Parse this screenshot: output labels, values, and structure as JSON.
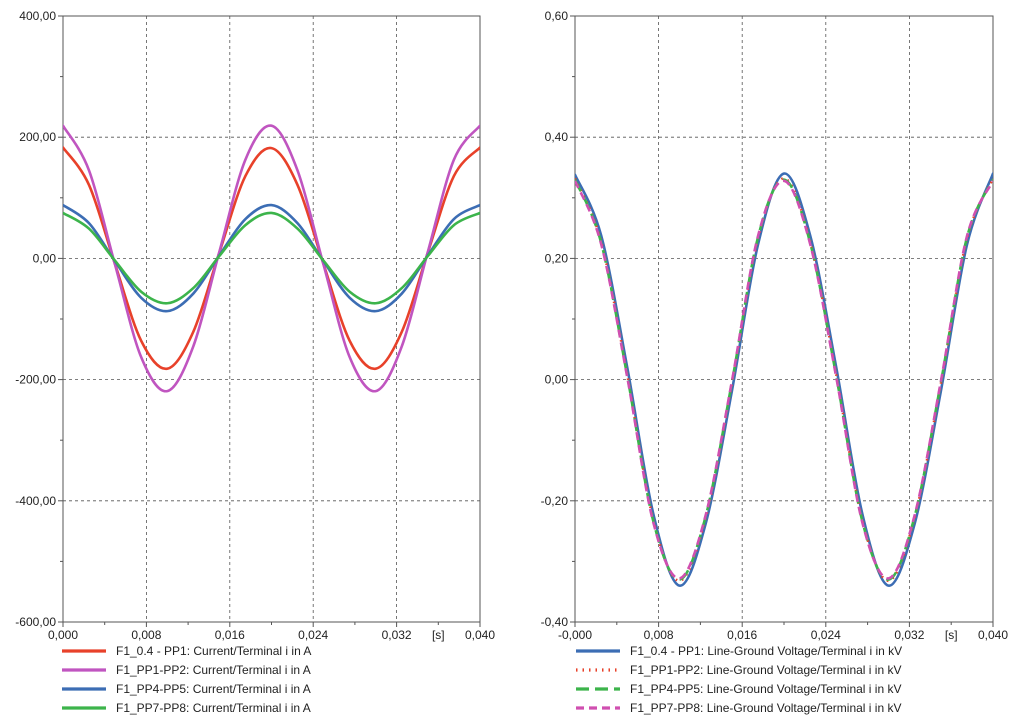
{
  "chart_data": [
    {
      "type": "line",
      "unit_label": "[s]",
      "xlim": [
        0,
        0.04
      ],
      "ylim": [
        -600,
        400
      ],
      "x_ticks": [
        0,
        0.008,
        0.016,
        0.024,
        0.032,
        0.04
      ],
      "x_tick_labels": [
        "0,000",
        "0,008",
        "0,016",
        "0,024",
        "0,032",
        "0,040"
      ],
      "y_ticks": [
        400,
        200,
        0,
        -200,
        -400,
        -600
      ],
      "y_tick_labels": [
        "400,00",
        "200,00",
        "0,00",
        "-200,00",
        "-400,00",
        "-600,00"
      ],
      "grid": true,
      "legend_position": "bottom",
      "series": [
        {
          "name": "F1_0.4 - PP1: Current/Terminal i in A",
          "color": "#e8412a",
          "dash": "solid",
          "x": [
            0,
            0.0025,
            0.005,
            0.0075,
            0.01,
            0.0125,
            0.015,
            0.0175,
            0.02,
            0.0225,
            0.025,
            0.0275,
            0.03,
            0.0325,
            0.035,
            0.0375,
            0.04
          ],
          "y": [
            183,
            121,
            -10,
            -136,
            -182,
            -121,
            10,
            136,
            182,
            121,
            -10,
            -136,
            -182,
            -121,
            10,
            136,
            183
          ]
        },
        {
          "name": "F1_PP1-PP2: Current/Terminal i in A",
          "color": "#c055c0",
          "dash": "solid",
          "x": [
            0,
            0.0025,
            0.005,
            0.0075,
            0.01,
            0.0125,
            0.015,
            0.0175,
            0.02,
            0.0225,
            0.025,
            0.0275,
            0.03,
            0.0325,
            0.035,
            0.0375,
            0.04
          ],
          "y": [
            219,
            145,
            -11,
            -163,
            -219,
            -145,
            11,
            163,
            219,
            145,
            -11,
            -163,
            -219,
            -145,
            11,
            163,
            219
          ]
        },
        {
          "name": "F1_PP4-PP5: Current/Terminal i in A",
          "color": "#3c6db4",
          "dash": "solid",
          "x": [
            0,
            0.0025,
            0.005,
            0.0075,
            0.01,
            0.0125,
            0.015,
            0.0175,
            0.02,
            0.0225,
            0.025,
            0.0275,
            0.03,
            0.0325,
            0.035,
            0.0375,
            0.04
          ],
          "y": [
            88,
            58,
            -5,
            -65,
            -87,
            -58,
            5,
            65,
            88,
            58,
            -5,
            -65,
            -87,
            -58,
            5,
            65,
            88
          ]
        },
        {
          "name": "F1_PP7-PP8: Current/Terminal i in A",
          "color": "#3cb44b",
          "dash": "solid",
          "x": [
            0,
            0.0025,
            0.005,
            0.0075,
            0.01,
            0.0125,
            0.015,
            0.0175,
            0.02,
            0.0225,
            0.025,
            0.0275,
            0.03,
            0.0325,
            0.035,
            0.0375,
            0.04
          ],
          "y": [
            75,
            49,
            -4,
            -55,
            -74,
            -49,
            4,
            55,
            75,
            49,
            -4,
            -55,
            -74,
            -49,
            4,
            55,
            75
          ]
        }
      ]
    },
    {
      "type": "line",
      "unit_label": "[s]",
      "xlim": [
        0,
        0.04
      ],
      "ylim": [
        -0.4,
        0.6
      ],
      "x_ticks": [
        0,
        0.008,
        0.016,
        0.024,
        0.032,
        0.04
      ],
      "x_tick_labels": [
        "-0,000",
        "0,008",
        "0,016",
        "0,024",
        "0,032",
        "0,040"
      ],
      "y_ticks": [
        0.6,
        0.4,
        0.2,
        0,
        -0.2,
        -0.4
      ],
      "y_tick_labels": [
        "0,60",
        "0,40",
        "0,20",
        "0,00",
        "-0,20",
        "-0,40"
      ],
      "grid": true,
      "legend_position": "bottom",
      "series": [
        {
          "name": "F1_0.4 - PP1: Line-Ground Voltage/Terminal i in kV",
          "color": "#3c6db4",
          "dash": "solid",
          "x": [
            0,
            0.0025,
            0.005,
            0.0075,
            0.01,
            0.0125,
            0.015,
            0.0175,
            0.02,
            0.0225,
            0.025,
            0.0275,
            0.03,
            0.0325,
            0.035,
            0.0375,
            0.04
          ],
          "y": [
            0.338,
            0.238,
            0.02,
            -0.222,
            -0.34,
            -0.238,
            -0.02,
            0.222,
            0.34,
            0.238,
            0.02,
            -0.222,
            -0.34,
            -0.238,
            -0.02,
            0.222,
            0.34
          ]
        },
        {
          "name": "F1_PP1-PP2: Line-Ground Voltage/Terminal i in kV",
          "color": "#e8412a",
          "dash": "dotted",
          "x": [
            0,
            0.0025,
            0.005,
            0.0075,
            0.01,
            0.0125,
            0.015,
            0.0175,
            0.02,
            0.0225,
            0.025,
            0.0275,
            0.03,
            0.0325,
            0.035,
            0.0375,
            0.04
          ],
          "y": [
            0.332,
            0.228,
            0.008,
            -0.232,
            -0.332,
            -0.228,
            -0.008,
            0.232,
            0.332,
            0.228,
            0.008,
            -0.232,
            -0.332,
            -0.228,
            -0.008,
            0.232,
            0.332
          ]
        },
        {
          "name": "F1_PP4-PP5: Line-Ground Voltage/Terminal i in kV",
          "color": "#3cb44b",
          "dash": "longdash",
          "x": [
            0,
            0.0025,
            0.005,
            0.0075,
            0.01,
            0.0125,
            0.015,
            0.0175,
            0.02,
            0.0225,
            0.025,
            0.0275,
            0.03,
            0.0325,
            0.035,
            0.0375,
            0.04
          ],
          "y": [
            0.33,
            0.226,
            0.006,
            -0.234,
            -0.33,
            -0.226,
            -0.006,
            0.234,
            0.33,
            0.226,
            0.006,
            -0.234,
            -0.33,
            -0.226,
            -0.006,
            0.234,
            0.33
          ]
        },
        {
          "name": "F1_PP7-PP8: Line-Ground Voltage/Terminal i in kV",
          "color": "#d04fb0",
          "dash": "dashed",
          "x": [
            0,
            0.0025,
            0.005,
            0.0075,
            0.01,
            0.0125,
            0.015,
            0.0175,
            0.02,
            0.0225,
            0.025,
            0.0275,
            0.03,
            0.0325,
            0.035,
            0.0375,
            0.04
          ],
          "y": [
            0.328,
            0.224,
            0.004,
            -0.236,
            -0.328,
            -0.224,
            -0.004,
            0.236,
            0.328,
            0.224,
            0.004,
            -0.236,
            -0.328,
            -0.224,
            -0.004,
            0.236,
            0.328
          ]
        }
      ]
    }
  ]
}
